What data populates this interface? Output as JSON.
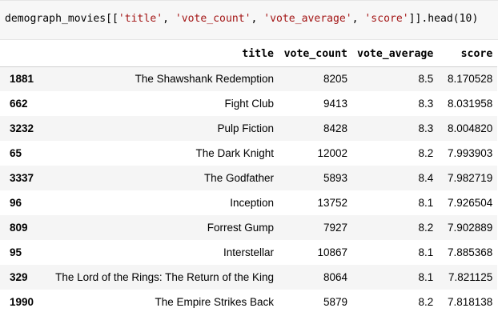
{
  "code_cell": {
    "prefix": "demograph_movies[[",
    "columns_code": [
      "'title'",
      "'vote_count'",
      "'vote_average'",
      "'score'"
    ],
    "suffix": "]].head(10)"
  },
  "table": {
    "columns": [
      "title",
      "vote_count",
      "vote_average",
      "score"
    ],
    "rows": [
      {
        "index": "1881",
        "title": "The Shawshank Redemption",
        "vote_count": "8205",
        "vote_average": "8.5",
        "score": "8.170528"
      },
      {
        "index": "662",
        "title": "Fight Club",
        "vote_count": "9413",
        "vote_average": "8.3",
        "score": "8.031958"
      },
      {
        "index": "3232",
        "title": "Pulp Fiction",
        "vote_count": "8428",
        "vote_average": "8.3",
        "score": "8.004820"
      },
      {
        "index": "65",
        "title": "The Dark Knight",
        "vote_count": "12002",
        "vote_average": "8.2",
        "score": "7.993903"
      },
      {
        "index": "3337",
        "title": "The Godfather",
        "vote_count": "5893",
        "vote_average": "8.4",
        "score": "7.982719"
      },
      {
        "index": "96",
        "title": "Inception",
        "vote_count": "13752",
        "vote_average": "8.1",
        "score": "7.926504"
      },
      {
        "index": "809",
        "title": "Forrest Gump",
        "vote_count": "7927",
        "vote_average": "8.2",
        "score": "7.902889"
      },
      {
        "index": "95",
        "title": "Interstellar",
        "vote_count": "10867",
        "vote_average": "8.1",
        "score": "7.885368"
      },
      {
        "index": "329",
        "title": "The Lord of the Rings: The Return of the King",
        "vote_count": "8064",
        "vote_average": "8.1",
        "score": "7.821125"
      },
      {
        "index": "1990",
        "title": "The Empire Strikes Back",
        "vote_count": "5879",
        "vote_average": "8.2",
        "score": "7.818138"
      }
    ]
  }
}
